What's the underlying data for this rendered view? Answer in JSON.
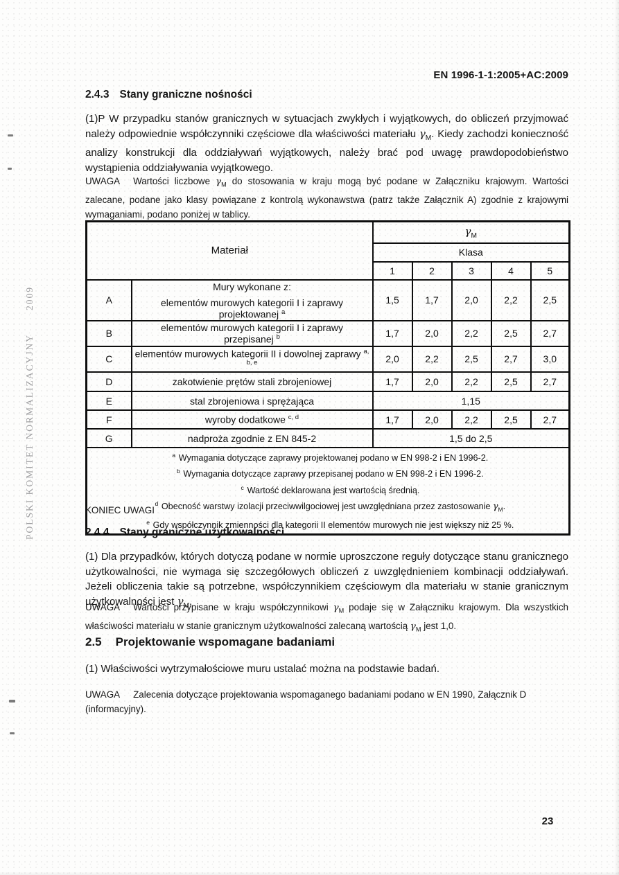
{
  "page": {
    "doc_ref": "EN 1996-1-1:2005+AC:2009",
    "page_number": "23",
    "sidebar": {
      "org": "POLSKI KOMITET NORMALIZACYJNY",
      "year": "2009"
    }
  },
  "s243": {
    "number": "2.4.3",
    "title": "Stany graniczne nośności",
    "para": "(1)P W przypadku stanów granicznych w sytuacjach zwykłych i wyjątkowych, do obliczeń przyjmować należy odpowiednie współczynniki częściowe dla właściwości materiału γ_{M}. Kiedy zachodzi konieczność analizy konstrukcji dla oddziaływań wyjątkowych, należy brać pod uwagę prawdopodobieństwo wystąpienia oddziaływania wyjątkowego.",
    "note_label": "UWAGA",
    "note": "Wartości liczbowe γ_{M} do stosowania w kraju mogą być podane w Załączniku krajowym. Wartości zalecane, podane jako klasy powiązane z kontrolą wykonawstwa (patrz także Załącznik A) zgodnie z krajowymi wymaganiami, podano poniżej w tablicy.",
    "note_end": "KONIEC UWAGI"
  },
  "table": {
    "col_material": "Materiał",
    "col_gamma": "γ_{M}",
    "col_klasa": "Klasa",
    "class_numbers": [
      "1",
      "2",
      "3",
      "4",
      "5"
    ],
    "group_header": "Mury wykonane z:",
    "rows": [
      {
        "id": "A",
        "desc": "elementów murowych kategorii I i zaprawy projektowanej ^{a}",
        "values": [
          "1,5",
          "1,7",
          "2,0",
          "2,2",
          "2,5"
        ]
      },
      {
        "id": "B",
        "desc": "elementów murowych kategorii I i zaprawy przepisanej ^{b}",
        "values": [
          "1,7",
          "2,0",
          "2,2",
          "2,5",
          "2,7"
        ]
      },
      {
        "id": "C",
        "desc": "elementów murowych kategorii II i dowolnej zaprawy ^{a, b, e}",
        "values": [
          "2,0",
          "2,2",
          "2,5",
          "2,7",
          "3,0"
        ]
      },
      {
        "id": "D",
        "desc": "zakotwienie prętów stali zbrojeniowej",
        "values": [
          "1,7",
          "2,0",
          "2,2",
          "2,5",
          "2,7"
        ]
      },
      {
        "id": "E",
        "desc": "stal zbrojeniowa i sprężająca",
        "span": "1,15"
      },
      {
        "id": "F",
        "desc": "wyroby dodatkowe ^{c, d}",
        "values": [
          "1,7",
          "2,0",
          "2,2",
          "2,5",
          "2,7"
        ]
      },
      {
        "id": "G",
        "desc": "nadproża zgodnie z EN 845-2",
        "span": "1,5 do 2,5"
      }
    ],
    "footnotes": [
      {
        "marker": "a",
        "text": "Wymagania dotyczące zaprawy projektowanej podano w EN 998-2 i EN 1996-2."
      },
      {
        "marker": "b",
        "text": "Wymagania dotyczące zaprawy przepisanej podano w EN 998-2 i EN 1996-2."
      },
      {
        "marker": "c",
        "text": "Wartość deklarowana jest wartością średnią."
      },
      {
        "marker": "d",
        "text": "Obecność warstwy izolacji przeciwwilgociowej jest uwzględniana przez zastosowanie γ_{M}."
      },
      {
        "marker": "e",
        "text": "Gdy współczynnik zmienności dla kategorii II elementów murowych nie jest większy niż 25 %."
      }
    ]
  },
  "s244": {
    "number": "2.4.4",
    "title": "Stany graniczne użytkowalności",
    "para": "(1) Dla przypadków, których dotyczą podane w normie uproszczone reguły dotyczące stanu granicznego użytkowalności, nie wymaga się szczegółowych obliczeń z uwzględnieniem kombinacji oddziaływań. Jeżeli obliczenia takie są potrzebne, współczynnikiem częściowym dla materiału w stanie granicznym użytkowalności jest γ_{M}.",
    "note_label": "UWAGA",
    "note": "Wartości przypisane w kraju współczynnikowi γ_{M} podaje się w Załączniku krajowym. Dla wszystkich właściwości materiału w stanie granicznym użytkowalności zalecaną wartością γ_{M} jest 1,0."
  },
  "s25": {
    "number": "2.5",
    "title": "Projektowanie wspomagane badaniami",
    "para": "(1) Właściwości wytrzymałościowe muru ustalać można na podstawie badań.",
    "note_label": "UWAGA",
    "note": "Zalecenia dotyczące projektowania wspomaganego badaniami podano w EN 1990, Załącznik D (informacyjny)."
  }
}
